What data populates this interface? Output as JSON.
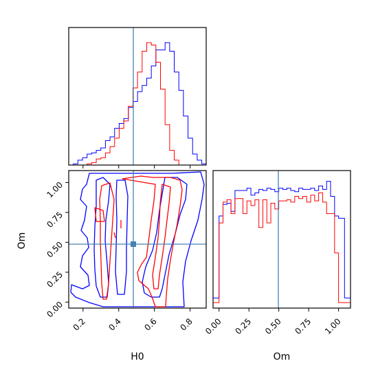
{
  "chart_data": {
    "type": "corner",
    "parameters": [
      "H0",
      "Om"
    ],
    "truth": {
      "H0": 0.5,
      "Om": 0.5
    },
    "truth_color": "#4682b4",
    "series": [
      {
        "color": "#0000ff"
      },
      {
        "color": "#ff0000"
      }
    ],
    "panels": {
      "h0_hist": {
        "xlim": [
          0.12,
          0.89
        ],
        "edges": [
          0.12,
          0.1457,
          0.1714,
          0.1971,
          0.2228,
          0.2485,
          0.2742,
          0.2999,
          0.3256,
          0.3513,
          0.377,
          0.4027,
          0.4284,
          0.4541,
          0.4798,
          0.5055,
          0.5312,
          0.5569,
          0.5826,
          0.6083,
          0.634,
          0.6597,
          0.6854,
          0.7111,
          0.7368,
          0.7625,
          0.7882,
          0.8139,
          0.8396,
          0.8653,
          0.89
        ],
        "blue_counts": [
          0,
          0.01,
          0.04,
          0.06,
          0.09,
          0.1,
          0.12,
          0.14,
          0.2,
          0.23,
          0.3,
          0.34,
          0.38,
          0.47,
          0.52,
          0.6,
          0.65,
          0.71,
          0.81,
          0.94,
          0.94,
          1.0,
          0.93,
          0.76,
          0.61,
          0.4,
          0.22,
          0.09,
          0.04,
          0.01
        ],
        "red_counts": [
          0,
          0,
          0,
          0,
          0.01,
          0.02,
          0.05,
          0.06,
          0.1,
          0.15,
          0.22,
          0.3,
          0.36,
          0.48,
          0.63,
          0.76,
          0.93,
          1.0,
          0.98,
          0.84,
          0.62,
          0.33,
          0.12,
          0.04,
          0,
          0,
          0,
          0,
          0,
          0
        ]
      },
      "om_hist": {
        "xlim": [
          -0.05,
          1.1
        ],
        "xticks": [
          "0.00",
          "0.25",
          "0.50",
          "0.75",
          "1.00"
        ],
        "edges": [
          -0.05,
          0,
          0.0333,
          0.0667,
          0.1,
          0.1333,
          0.1667,
          0.2,
          0.2333,
          0.2667,
          0.3,
          0.3333,
          0.3667,
          0.4,
          0.4333,
          0.4667,
          0.5,
          0.5333,
          0.5667,
          0.6,
          0.6333,
          0.6667,
          0.7,
          0.7333,
          0.7667,
          0.8,
          0.8333,
          0.8667,
          0.9,
          0.9333,
          0.9667,
          1.0,
          1.05,
          1.1
        ],
        "blue_counts": [
          0.04,
          0.75,
          0.85,
          0.86,
          0.79,
          0.97,
          0.97,
          0.97,
          0.99,
          0.93,
          0.95,
          0.98,
          0.97,
          0.99,
          0.98,
          0.96,
          0.99,
          0.98,
          0.99,
          0.97,
          0.96,
          0.99,
          0.98,
          0.98,
          0.99,
          0.97,
          1.01,
          0.98,
          1.05,
          0.92,
          0.75,
          0.73,
          0.04
        ],
        "red_counts": [
          0,
          0.69,
          0.87,
          0.89,
          0.77,
          0.9,
          0.9,
          0.77,
          0.88,
          0.84,
          0.89,
          0.65,
          0.89,
          0.69,
          0.86,
          0.81,
          0.88,
          0.88,
          0.89,
          0.87,
          0.92,
          0.9,
          0.92,
          0.87,
          0.93,
          0.88,
          0.95,
          0.87,
          0.77,
          0.77,
          0.43,
          0,
          0
        ]
      },
      "joint": {
        "xlabel": "H0",
        "ylabel": "Om",
        "xlim": [
          0.12,
          0.89
        ],
        "ylim": [
          -0.05,
          1.1
        ],
        "xticks": [
          "0.2",
          "0.4",
          "0.6",
          "0.8"
        ],
        "yticks": [
          "0.00",
          "0.25",
          "0.50",
          "0.75",
          "1.00"
        ]
      }
    }
  }
}
